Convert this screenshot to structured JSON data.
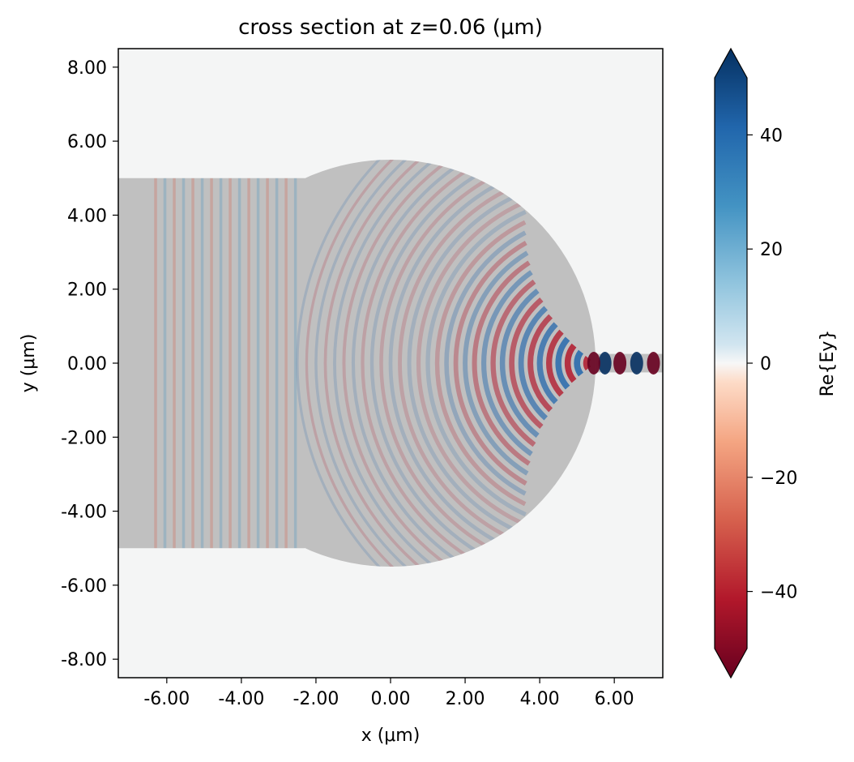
{
  "chart_data": {
    "type": "heatmap",
    "title": "cross section at z=0.06 (μm)",
    "xlabel": "x (μm)",
    "ylabel": "y (μm)",
    "xlim": [
      -7.3,
      7.3
    ],
    "ylim": [
      -8.5,
      8.5
    ],
    "x_ticks": [
      "-6.00",
      "-4.00",
      "-2.00",
      "0.00",
      "2.00",
      "4.00",
      "6.00"
    ],
    "x_tick_values": [
      -6,
      -4,
      -2,
      0,
      2,
      4,
      6
    ],
    "y_ticks": [
      "8.00",
      "6.00",
      "4.00",
      "2.00",
      "0.00",
      "-2.00",
      "-4.00",
      "-6.00",
      "-8.00"
    ],
    "y_tick_values": [
      8,
      6,
      4,
      2,
      0,
      -2,
      -4,
      -6,
      -8
    ],
    "colorbar": {
      "label": "Re{Ey}",
      "range": [
        -50,
        50
      ],
      "ticks": [
        "40",
        "20",
        "0",
        "−20",
        "−40"
      ],
      "tick_values": [
        40,
        20,
        0,
        -20,
        -40
      ],
      "colormap": "RdBu",
      "extend": "both"
    },
    "structures": [
      {
        "shape": "rectangle",
        "x_range": [
          -7.3,
          -2.3
        ],
        "y_range": [
          -5,
          5
        ]
      },
      {
        "shape": "half-disk",
        "center": [
          0,
          0
        ],
        "radius": 5.5
      },
      {
        "shape": "output waveguide",
        "x_range": [
          5.5,
          7.3
        ],
        "y_range": [
          -0.25,
          0.25
        ]
      }
    ],
    "field_description": "Incident plane wave from left focused by lens to output waveguide at x≈5.5",
    "colors": {
      "structure": "#c0c0c0",
      "background": "#f4f5f5",
      "positive": "#053061",
      "negative": "#67001f"
    }
  }
}
